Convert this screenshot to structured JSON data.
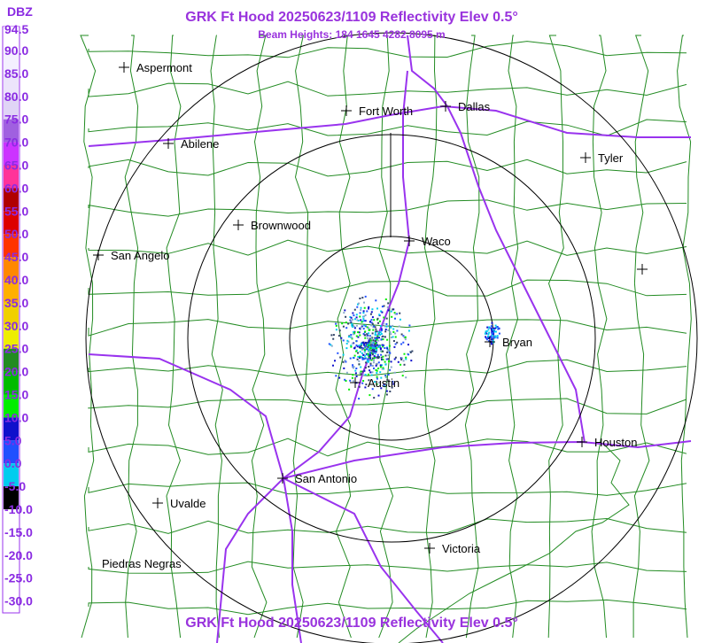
{
  "header": {
    "title": "GRK Ft Hood 20250623/1109 Reflectivity Elev 0.5°",
    "subtitle": "Beam Heights: 184 1645 4282 8095 m"
  },
  "legend": {
    "unit": "DBZ",
    "labels": [
      "94.5",
      "90.0",
      "85.0",
      "80.0",
      "75.0",
      "70.0",
      "65.0",
      "60.0",
      "55.0",
      "50.0",
      "45.0",
      "40.0",
      "35.0",
      "30.0",
      "25.0",
      "20.0",
      "15.0",
      "10.0",
      "5.0",
      "0.0",
      "-5.0",
      "-10.0",
      "-15.0",
      "-20.0",
      "-25.0",
      "-30.0"
    ],
    "colors": [
      "#ffffff",
      "#f4f0ff",
      "#ece4fb",
      "#e0d4f6",
      "#a060e0",
      "#cc33ff",
      "#ff3399",
      "#b00000",
      "#dd0000",
      "#ff3300",
      "#ff8800",
      "#ffb000",
      "#f0d000",
      "#eeee00",
      "#228b22",
      "#00bb00",
      "#00ee00",
      "#1010cc",
      "#2050ff",
      "#00ccee",
      "#000000",
      "#ffffff",
      "#ffffff",
      "#ffffff",
      "#ffffff"
    ]
  },
  "cities": [
    {
      "label": "Aspermont"
    },
    {
      "label": "Fort Worth"
    },
    {
      "label": "Dallas"
    },
    {
      "label": "Abilene"
    },
    {
      "label": "Tyler"
    },
    {
      "label": "Brownwood"
    },
    {
      "label": "Waco"
    },
    {
      "label": "San Angelo"
    },
    {
      "label": "Bryan"
    },
    {
      "label": "Austin"
    },
    {
      "label": "Houston"
    },
    {
      "label": "San Antonio"
    },
    {
      "label": "Uvalde"
    },
    {
      "label": "Victoria"
    },
    {
      "label": "Piedras Negras"
    }
  ],
  "footer": {
    "title": "GRK Ft Hood 20250623/1109 Reflectivity Elev 0.5°"
  }
}
